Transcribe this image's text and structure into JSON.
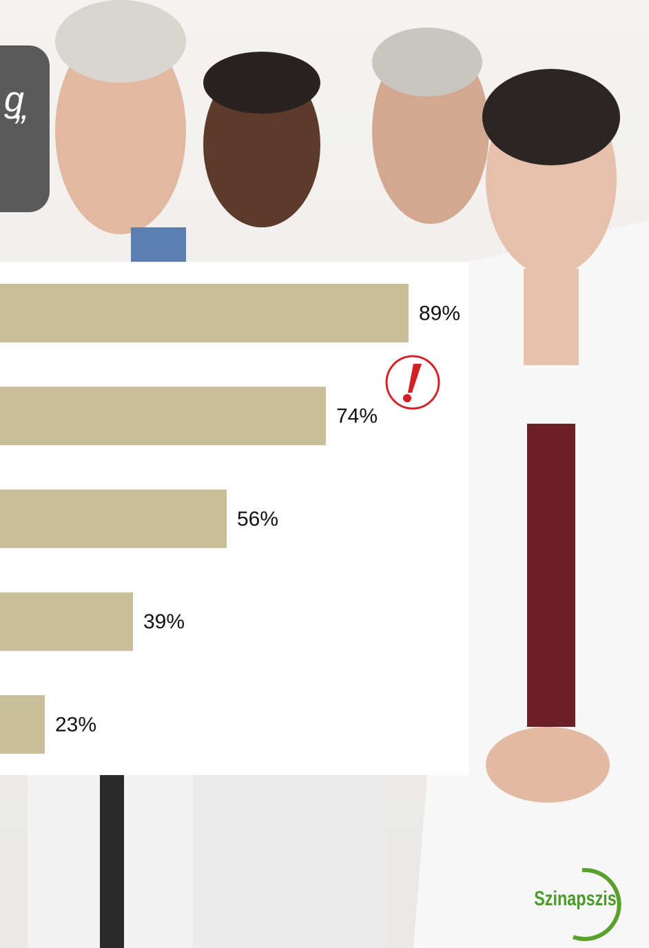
{
  "chart_data": {
    "type": "bar",
    "orientation": "horizontal",
    "annotations": [
      "g",
      "”"
    ],
    "logo": "Szinapszis",
    "categories": [
      null,
      null,
      null,
      null,
      null
    ],
    "values": [
      89,
      74,
      56,
      39,
      23
    ],
    "value_labels": [
      "89%",
      "74%",
      "56%",
      "39%",
      "23%"
    ],
    "color": "#c8bf98",
    "xlim": [
      0,
      100
    ]
  }
}
